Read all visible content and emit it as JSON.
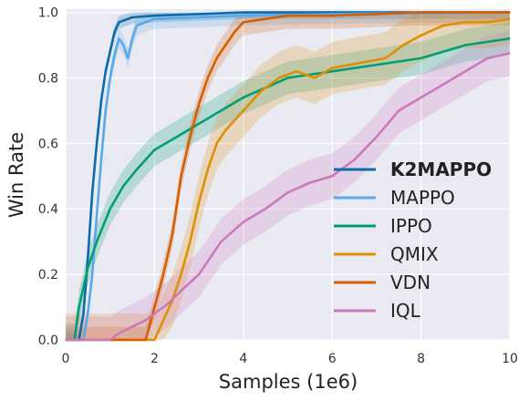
{
  "chart_data": {
    "type": "line",
    "xlabel": "Samples (1e6)",
    "ylabel": "Win Rate",
    "xlim": [
      0,
      10
    ],
    "ylim": [
      0,
      1.0
    ],
    "xticks": [
      "0",
      "2",
      "4",
      "6",
      "8",
      "10"
    ],
    "yticks": [
      "0.0",
      "0.2",
      "0.4",
      "0.6",
      "0.8",
      "1.0"
    ],
    "grid": true,
    "legend_position": "lower-right",
    "series": [
      {
        "name": "K2MAPPO",
        "color": "#0b6bab",
        "bold": true,
        "band": 0.02,
        "x": [
          0,
          0.3,
          0.4,
          0.5,
          0.6,
          0.7,
          0.8,
          0.9,
          1.0,
          1.1,
          1.2,
          1.5,
          2.0,
          3.0,
          4.0,
          6.0,
          8.0,
          10.0
        ],
        "y": [
          0,
          0.0,
          0.08,
          0.25,
          0.45,
          0.6,
          0.73,
          0.82,
          0.88,
          0.94,
          0.97,
          0.985,
          0.99,
          0.995,
          1.0,
          1.0,
          1.0,
          1.0
        ]
      },
      {
        "name": "MAPPO",
        "color": "#5aa9e6",
        "bold": false,
        "band": 0.03,
        "x": [
          0,
          0.4,
          0.5,
          0.6,
          0.7,
          0.8,
          0.9,
          1.0,
          1.1,
          1.2,
          1.3,
          1.4,
          1.5,
          1.6,
          1.8,
          2.0,
          3.0,
          4.0,
          6.0,
          8.0,
          10.0
        ],
        "y": [
          0,
          0.0,
          0.08,
          0.2,
          0.38,
          0.55,
          0.7,
          0.8,
          0.87,
          0.92,
          0.9,
          0.86,
          0.92,
          0.96,
          0.97,
          0.98,
          0.985,
          0.99,
          0.995,
          0.998,
          1.0
        ]
      },
      {
        "name": "IPPO",
        "color": "#029e73",
        "bold": false,
        "band": 0.05,
        "x": [
          0,
          0.2,
          0.3,
          0.5,
          0.7,
          1.0,
          1.3,
          1.6,
          2.0,
          2.5,
          3.0,
          3.5,
          4.0,
          4.5,
          5.0,
          5.5,
          6.0,
          6.5,
          7.0,
          7.5,
          8.0,
          8.5,
          9.0,
          9.5,
          10.0
        ],
        "y": [
          0,
          0.0,
          0.1,
          0.22,
          0.3,
          0.4,
          0.47,
          0.52,
          0.58,
          0.62,
          0.66,
          0.7,
          0.74,
          0.77,
          0.8,
          0.81,
          0.82,
          0.83,
          0.84,
          0.85,
          0.86,
          0.88,
          0.9,
          0.91,
          0.92
        ]
      },
      {
        "name": "QMIX",
        "color": "#de8f05",
        "bold": false,
        "band": 0.08,
        "x": [
          0,
          2.0,
          2.2,
          2.4,
          2.6,
          2.8,
          3.0,
          3.2,
          3.4,
          3.6,
          4.0,
          4.4,
          4.8,
          5.2,
          5.6,
          6.0,
          6.4,
          6.8,
          7.2,
          7.6,
          8.0,
          8.5,
          9.0,
          9.5,
          10.0
        ],
        "y": [
          0,
          0.0,
          0.06,
          0.12,
          0.2,
          0.3,
          0.42,
          0.52,
          0.6,
          0.64,
          0.7,
          0.76,
          0.8,
          0.82,
          0.8,
          0.83,
          0.84,
          0.85,
          0.86,
          0.9,
          0.93,
          0.96,
          0.97,
          0.97,
          0.98
        ]
      },
      {
        "name": "VDN",
        "color": "#d55e00",
        "bold": false,
        "band": 0.04,
        "x": [
          0,
          1.8,
          2.0,
          2.2,
          2.4,
          2.6,
          2.8,
          3.0,
          3.2,
          3.4,
          3.6,
          3.8,
          4.0,
          4.5,
          5.0,
          6.0,
          7.0,
          8.0,
          9.0,
          10.0
        ],
        "y": [
          0,
          0.0,
          0.1,
          0.2,
          0.32,
          0.5,
          0.62,
          0.72,
          0.8,
          0.86,
          0.9,
          0.94,
          0.97,
          0.98,
          0.99,
          0.99,
          0.995,
          1.0,
          1.0,
          1.0
        ]
      },
      {
        "name": "IQL",
        "color": "#cc78bc",
        "bold": false,
        "band": 0.07,
        "x": [
          0,
          1.0,
          1.2,
          1.5,
          1.8,
          2.0,
          2.3,
          2.6,
          3.0,
          3.5,
          4.0,
          4.5,
          5.0,
          5.5,
          6.0,
          6.5,
          7.0,
          7.5,
          8.0,
          8.5,
          9.0,
          9.5,
          10.0
        ],
        "y": [
          0,
          0.0,
          0.02,
          0.04,
          0.06,
          0.08,
          0.11,
          0.15,
          0.2,
          0.3,
          0.36,
          0.4,
          0.45,
          0.48,
          0.5,
          0.55,
          0.62,
          0.7,
          0.74,
          0.78,
          0.82,
          0.86,
          0.875
        ]
      }
    ]
  }
}
